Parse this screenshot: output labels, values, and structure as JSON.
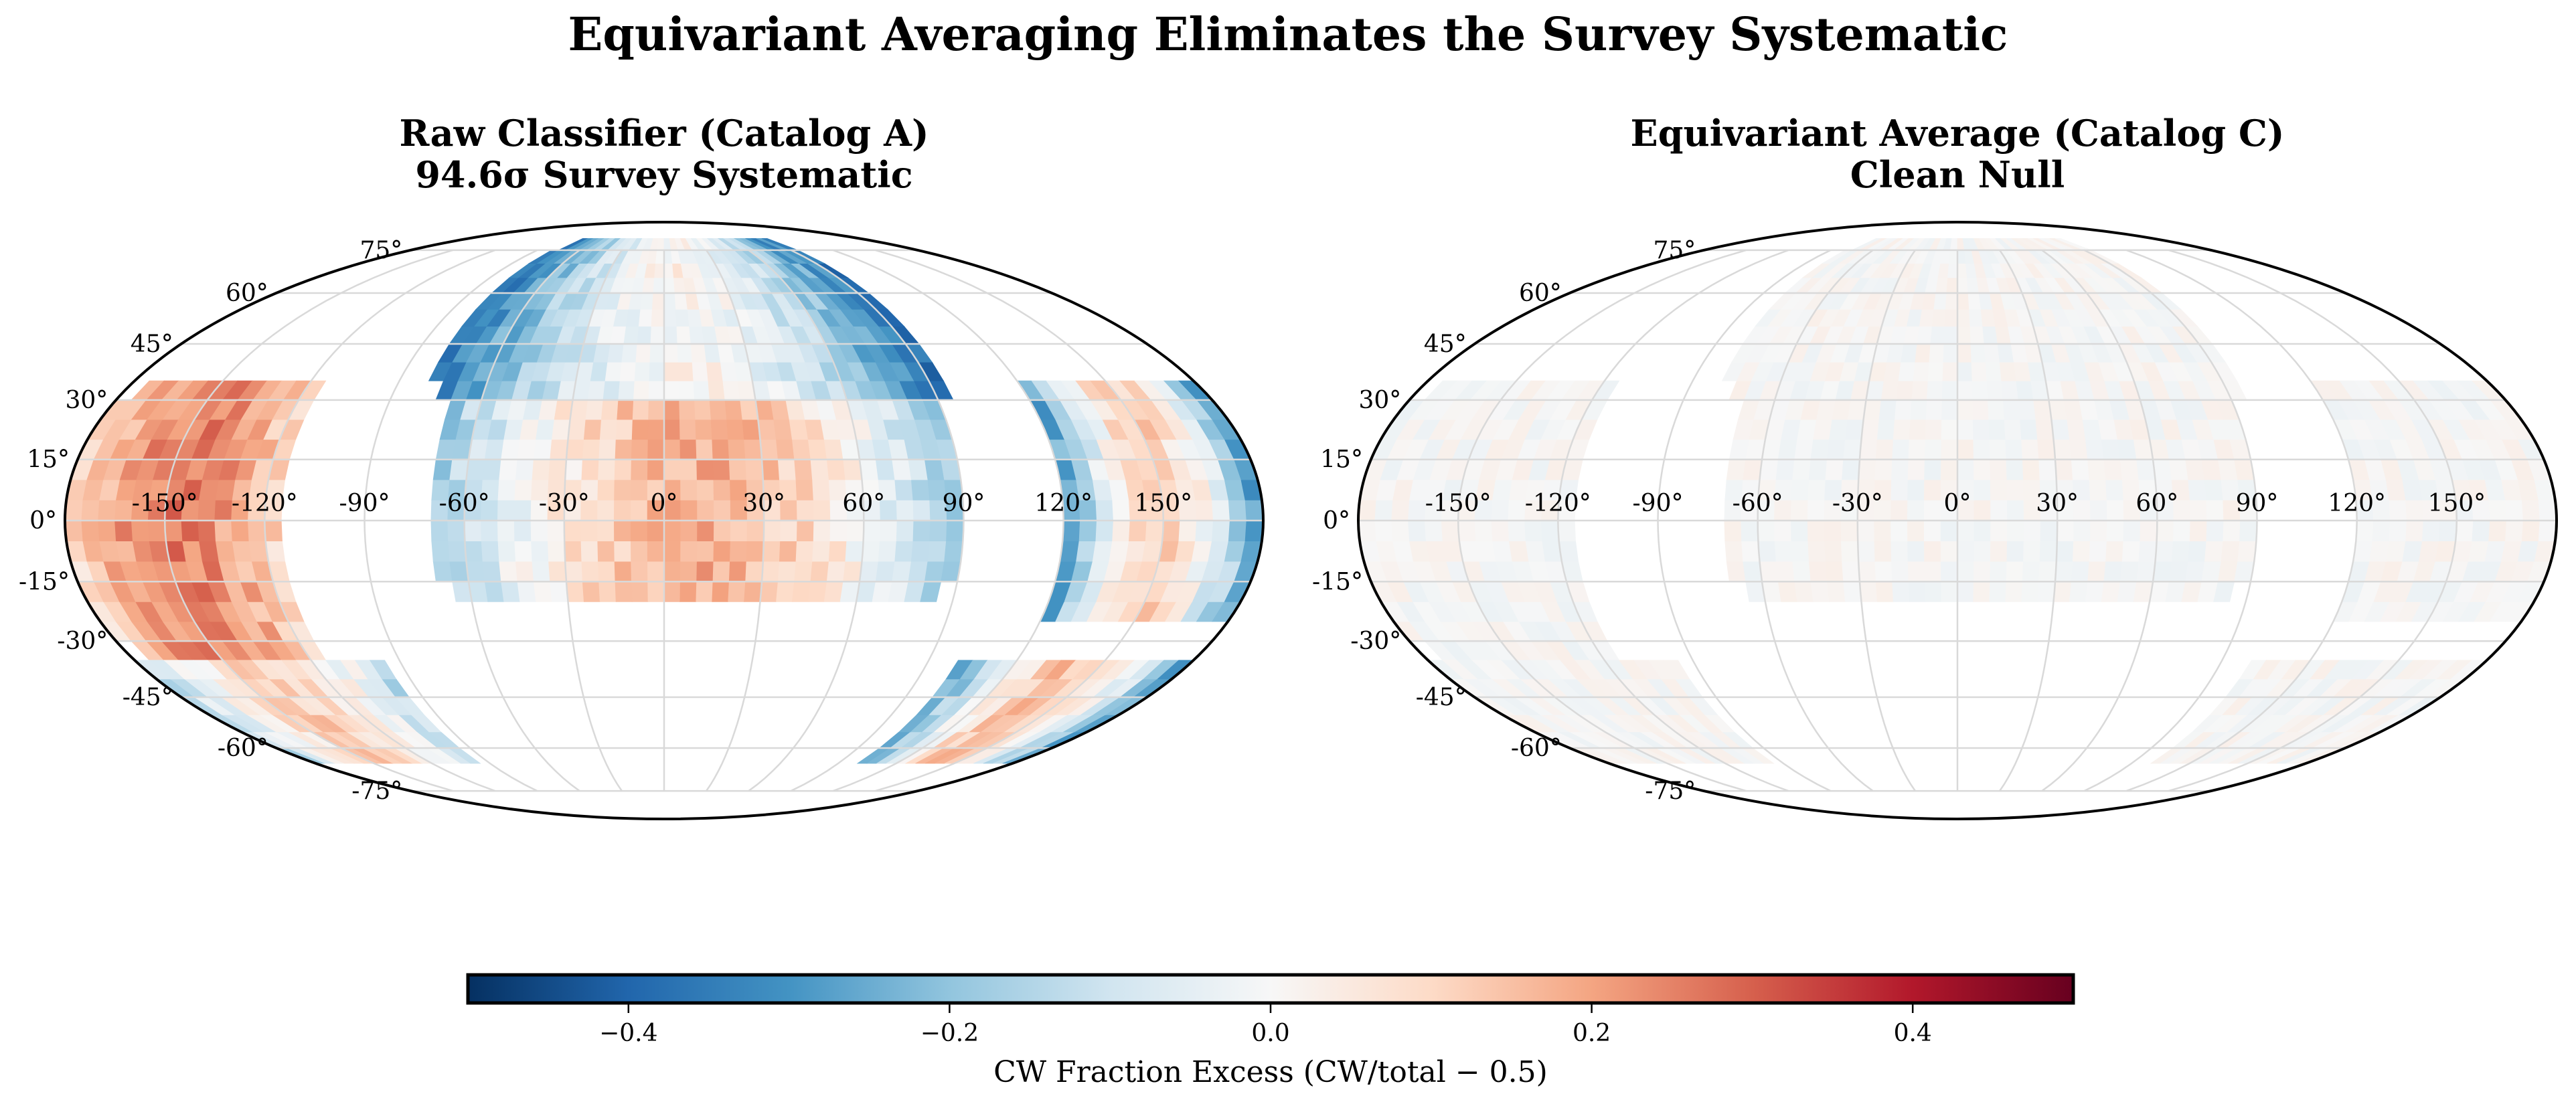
{
  "chart_data": {
    "type": "heatmap",
    "projection": "mollweide",
    "title": "Equivariant Averaging Eliminates the Survey Systematic",
    "bin_size_deg": 5,
    "colormap": "RdBu_r",
    "panels": [
      {
        "id": "raw",
        "title_line1": "Raw Classifier (Catalog A)",
        "title_line2": "94.6σ Survey Systematic",
        "regions": [
          {
            "name": "north-cap",
            "lon": [
              -80,
              95
            ],
            "lat": [
              30,
              80
            ],
            "edge_value": -0.38,
            "center_value": 0.02
          },
          {
            "name": "north-equatorial-core",
            "lon": [
              -70,
              90
            ],
            "lat": [
              -20,
              30
            ],
            "edge_value": -0.2,
            "center_value": 0.18
          },
          {
            "name": "west-band",
            "lon": [
              -180,
              -115
            ],
            "lat": [
              -35,
              35
            ],
            "edge_value": 0.08,
            "center_value": 0.26
          },
          {
            "name": "south-west-arc",
            "lon": [
              -180,
              -95
            ],
            "lat": [
              -65,
              -35
            ],
            "edge_value": -0.15,
            "center_value": 0.12
          },
          {
            "name": "east-band",
            "lon": [
              120,
              180
            ],
            "lat": [
              -25,
              35
            ],
            "edge_value": -0.32,
            "center_value": 0.12
          },
          {
            "name": "south-east-arc",
            "lon": [
              100,
              180
            ],
            "lat": [
              -65,
              -35
            ],
            "edge_value": -0.3,
            "center_value": 0.15
          }
        ]
      },
      {
        "id": "equivariant",
        "title_line1": "Equivariant Average (Catalog C)",
        "title_line2": "Clean Null",
        "regions": [
          {
            "name": "north-cap",
            "lon": [
              -80,
              95
            ],
            "lat": [
              30,
              80
            ],
            "edge_value": 0.0,
            "center_value": 0.0
          },
          {
            "name": "north-equatorial-core",
            "lon": [
              -70,
              90
            ],
            "lat": [
              -20,
              30
            ],
            "edge_value": 0.0,
            "center_value": 0.0
          },
          {
            "name": "west-band",
            "lon": [
              -180,
              -115
            ],
            "lat": [
              -35,
              35
            ],
            "edge_value": 0.0,
            "center_value": 0.0
          },
          {
            "name": "south-west-arc",
            "lon": [
              -180,
              -95
            ],
            "lat": [
              -65,
              -35
            ],
            "edge_value": 0.0,
            "center_value": 0.0
          },
          {
            "name": "east-band",
            "lon": [
              120,
              180
            ],
            "lat": [
              -25,
              35
            ],
            "edge_value": 0.0,
            "center_value": 0.0
          },
          {
            "name": "south-east-arc",
            "lon": [
              100,
              180
            ],
            "lat": [
              -65,
              -35
            ],
            "edge_value": 0.0,
            "center_value": 0.0
          }
        ],
        "noise_amplitude": 0.03
      }
    ],
    "lon_tick_labels": [
      "-150°",
      "-120°",
      "-90°",
      "-60°",
      "-30°",
      "0°",
      "30°",
      "60°",
      "90°",
      "120°",
      "150°"
    ],
    "lon_ticks": [
      -150,
      -120,
      -90,
      -60,
      -30,
      0,
      30,
      60,
      90,
      120,
      150
    ],
    "lat_tick_labels": [
      "-75°",
      "-60°",
      "-45°",
      "-30°",
      "-15°",
      "0°",
      "15°",
      "30°",
      "45°",
      "60°",
      "75°"
    ],
    "lat_ticks": [
      -75,
      -60,
      -45,
      -30,
      -15,
      0,
      15,
      30,
      45,
      60,
      75
    ],
    "grid": true,
    "colorbar": {
      "label": "CW Fraction Excess  (CW/total − 0.5)",
      "range": [
        -0.5,
        0.5
      ],
      "ticks": [
        -0.4,
        -0.2,
        0.0,
        0.2,
        0.4
      ],
      "tick_labels": [
        "−0.4",
        "−0.2",
        "0.0",
        "0.2",
        "0.4"
      ],
      "placement": "bottom"
    }
  }
}
